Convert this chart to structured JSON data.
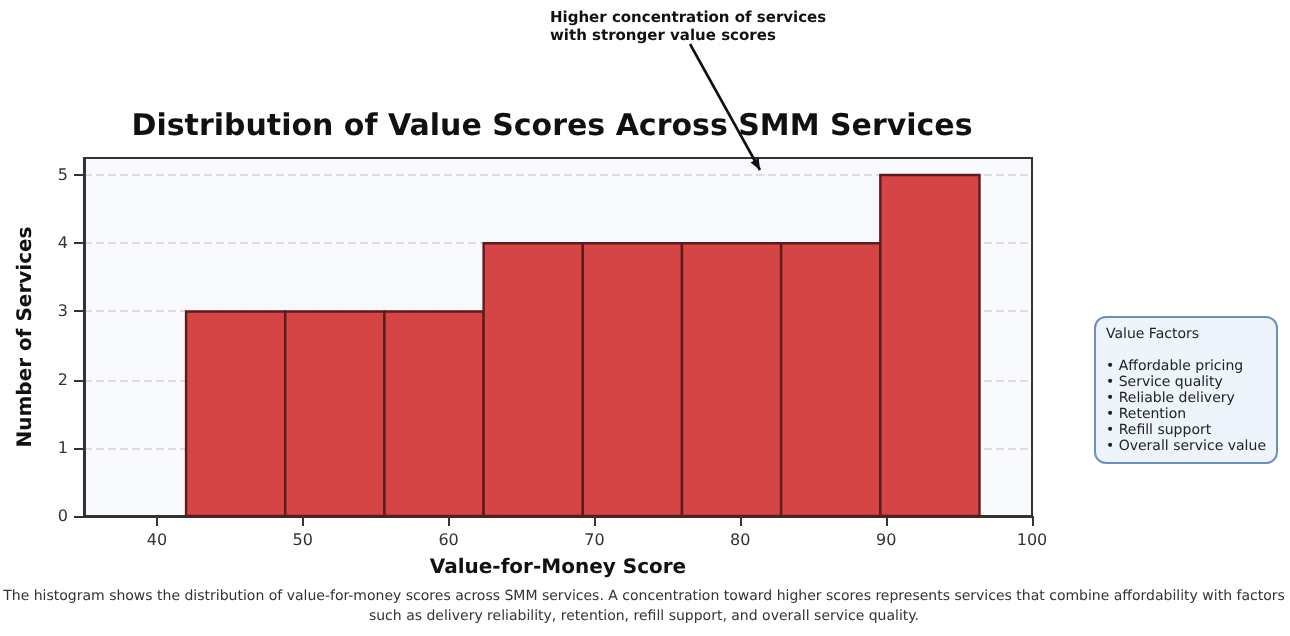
{
  "chart_data": {
    "type": "histogram",
    "title": "Distribution of Value Scores Across SMM Services",
    "xlabel": "Value-for-Money Score",
    "ylabel": "Number of Services",
    "bins": [
      42,
      48.8,
      55.6,
      62.4,
      69.2,
      76,
      82.8,
      89.6,
      96.4
    ],
    "values": [
      3,
      3,
      3,
      4,
      4,
      4,
      4,
      5
    ],
    "color": "#d64545",
    "xlim": [
      35,
      100
    ],
    "xticks": [
      40,
      50,
      60,
      70,
      80,
      90,
      100
    ],
    "ylim": [
      0,
      5.25
    ],
    "yticks": [
      0,
      1,
      2,
      3,
      4,
      5
    ],
    "grid": "y",
    "annotations": [
      "Higher concentration of services\nwith stronger value scores",
      "Value Factors\n\n• Affordable pricing\n• Service quality\n• Reliable delivery\n• Retention\n• Refill support\n• Overall service value",
      "The histogram shows the distribution of value-for-money scores across SMM services. A concentration toward higher scores represents services that combine affordability with factors\nsuch as delivery reliability, retention, refill support, and overall service quality."
    ]
  }
}
